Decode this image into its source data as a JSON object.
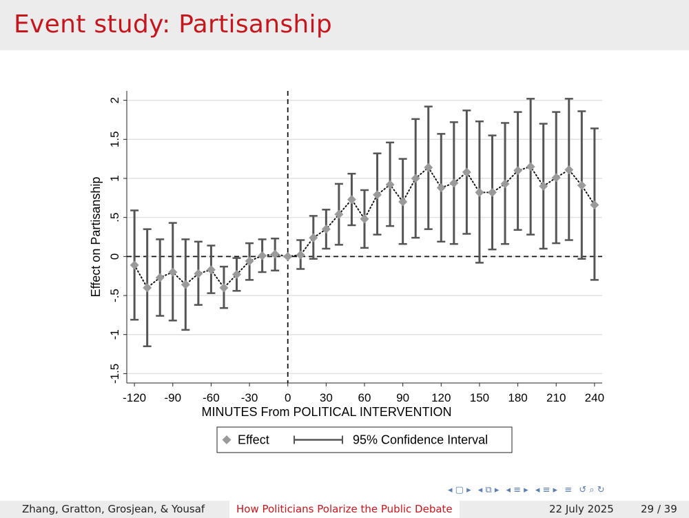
{
  "slide": {
    "title": "Event study: Partisanship",
    "footer": {
      "authors": "Zhang, Gratton, Grosjean, & Yousaf",
      "talk_title": "How Politicians Polarize the Public Debate",
      "date": "22 July 2025",
      "page": "29 / 39"
    },
    "nav_icons": [
      "nav-frame-prev-icon",
      "nav-frame-next-icon",
      "nav-subsection-icon",
      "nav-section-prev-icon",
      "nav-section-next-icon",
      "nav-toc-icon",
      "nav-search-icon"
    ],
    "colors": {
      "title": "#c4161c",
      "footer_bg": "#ececec",
      "nav": "#5b7fb0"
    }
  },
  "chart_data": {
    "type": "scatter",
    "xlabel": "MINUTES From POLITICAL INTERVENTION",
    "ylabel": "Effect on Partisanship",
    "xlim": [
      -126,
      246
    ],
    "ylim": [
      -1.62,
      2.12
    ],
    "xticks": [
      -120,
      -90,
      -60,
      -30,
      0,
      30,
      60,
      90,
      120,
      150,
      180,
      210,
      240
    ],
    "xtick_labels": [
      "-120",
      "-90",
      "-60",
      "-30",
      "0",
      "30",
      "60",
      "90",
      "120",
      "150",
      "180",
      "210",
      "240"
    ],
    "yticks": [
      -1.5,
      -1,
      -0.5,
      0,
      0.5,
      1,
      1.5,
      2
    ],
    "ytick_labels": [
      "-1.5",
      "-1",
      "-.5",
      "0",
      ".5",
      "1",
      "1.5",
      "2"
    ],
    "grid": true,
    "reference_lines": {
      "x": 0,
      "y": 0
    },
    "legend": {
      "placement": "bottom",
      "entries": [
        "Effect",
        "95% Confidence Interval"
      ]
    },
    "series": [
      {
        "name": "Effect",
        "x": [
          -120,
          -110,
          -100,
          -90,
          -80,
          -70,
          -60,
          -50,
          -40,
          -30,
          -20,
          -10,
          0,
          10,
          20,
          30,
          40,
          50,
          60,
          70,
          80,
          90,
          100,
          110,
          120,
          130,
          140,
          150,
          160,
          170,
          180,
          190,
          200,
          210,
          220,
          230,
          240
        ],
        "y": [
          -0.11,
          -0.4,
          -0.27,
          -0.2,
          -0.36,
          -0.22,
          -0.17,
          -0.4,
          -0.23,
          -0.06,
          0.01,
          0.03,
          0,
          0.02,
          0.24,
          0.35,
          0.54,
          0.73,
          0.48,
          0.79,
          0.92,
          0.7,
          1.0,
          1.14,
          0.88,
          0.94,
          1.08,
          0.82,
          0.82,
          0.93,
          1.1,
          1.15,
          0.9,
          1.01,
          1.11,
          0.91,
          0.66
        ],
        "ci_lower": [
          -0.81,
          -1.15,
          -0.76,
          -0.82,
          -0.94,
          -0.62,
          -0.47,
          -0.66,
          -0.44,
          -0.3,
          -0.2,
          -0.18,
          0,
          -0.16,
          -0.03,
          0.1,
          0.15,
          0.4,
          0.11,
          0.28,
          0.39,
          0.16,
          0.24,
          0.35,
          0.19,
          0.16,
          0.29,
          -0.08,
          0.09,
          0.16,
          0.34,
          0.28,
          0.1,
          0.17,
          0.21,
          -0.03,
          -0.3
        ],
        "ci_upper": [
          0.59,
          0.35,
          0.22,
          0.43,
          0.22,
          0.19,
          0.14,
          -0.13,
          -0.02,
          0.17,
          0.22,
          0.23,
          0,
          0.21,
          0.52,
          0.6,
          0.93,
          1.06,
          0.85,
          1.32,
          1.46,
          1.25,
          1.76,
          1.92,
          1.57,
          1.72,
          1.87,
          1.73,
          1.55,
          1.71,
          1.85,
          2.02,
          1.7,
          1.85,
          2.02,
          1.86,
          1.64
        ]
      }
    ]
  }
}
